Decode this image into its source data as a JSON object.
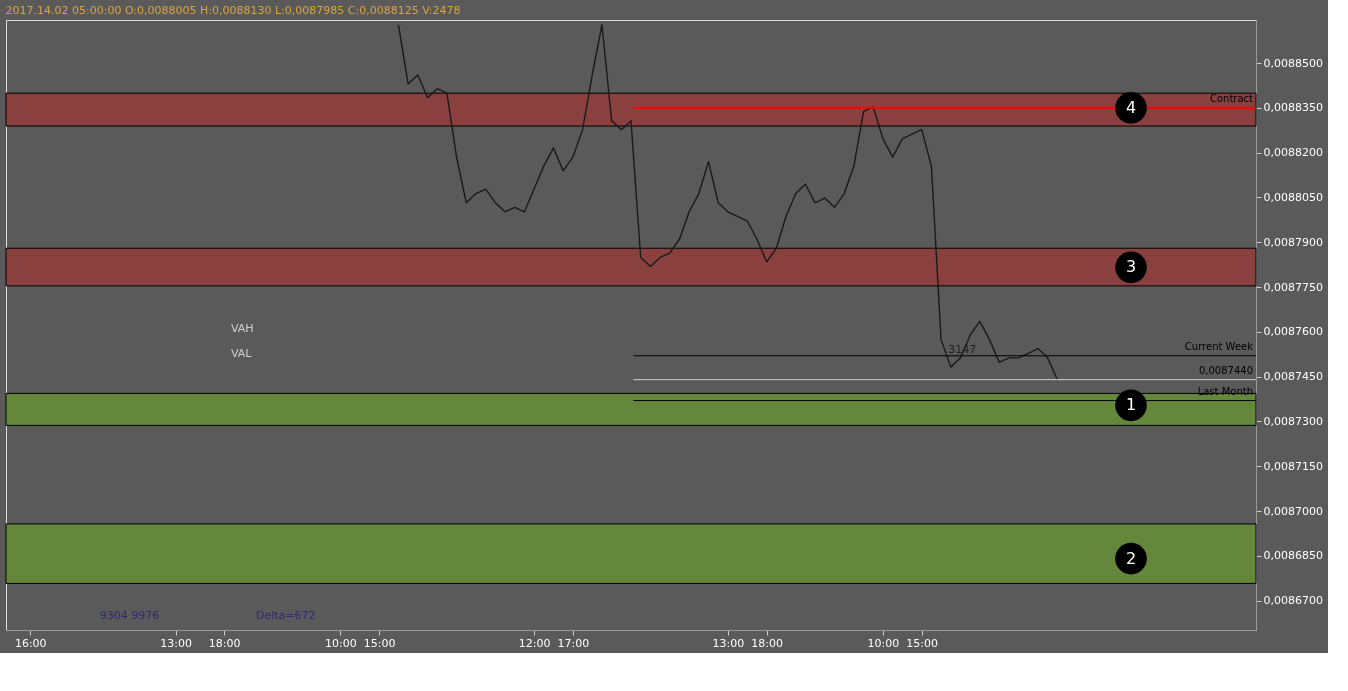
{
  "chart_data": {
    "type": "line",
    "title": "2017.14.02 05:00:00   O:0,0088005   H:0,0088130   L:0,0087985   C:0,0088125   V:2478",
    "categories": [
      null,
      null,
      "16:00",
      null,
      null,
      null,
      null,
      null,
      null,
      null,
      null,
      null,
      null,
      null,
      null,
      null,
      null,
      "13:00",
      null,
      null,
      null,
      null,
      "18:00",
      null,
      null,
      null,
      null,
      null,
      null,
      null,
      null,
      null,
      null,
      null,
      "10:00",
      null,
      null,
      null,
      "15:00",
      null,
      null,
      null,
      null,
      null,
      null,
      null,
      null,
      null,
      null,
      null,
      null,
      null,
      null,
      null,
      "12:00",
      null,
      null,
      null,
      "17:00",
      null,
      null,
      null,
      null,
      null,
      null,
      null,
      null,
      null,
      null,
      null,
      null,
      null,
      null,
      null,
      "13:00",
      null,
      null,
      null,
      "18:00",
      null,
      null,
      null,
      null,
      null,
      null,
      null,
      null,
      null,
      null,
      null,
      "10:00",
      null,
      null,
      null,
      "15:00",
      null,
      null,
      null,
      null,
      null,
      null,
      null,
      null,
      null,
      null,
      null,
      null,
      null,
      null,
      null,
      null,
      null,
      null,
      null,
      null,
      null,
      null,
      null,
      null,
      null,
      null,
      null,
      null,
      null,
      null,
      null,
      null,
      null,
      null
    ],
    "series": [
      {
        "color": "#1a1a1a",
        "values": [
          null,
          null,
          null,
          null,
          null,
          null,
          null,
          null,
          null,
          null,
          null,
          null,
          null,
          null,
          null,
          null,
          null,
          null,
          null,
          null,
          null,
          null,
          null,
          null,
          null,
          null,
          null,
          null,
          null,
          null,
          null,
          null,
          null,
          null,
          null,
          null,
          null,
          null,
          null,
          null,
          0.0088628,
          0.008843,
          0.008846,
          0.0088384,
          0.0088414,
          0.0088399,
          0.0088185,
          0.0088032,
          0.0088063,
          0.0088078,
          0.0088032,
          0.0088002,
          0.0088017,
          0.0088002,
          0.0088078,
          0.0088155,
          0.0088216,
          0.0088139,
          0.0088185,
          0.0088277,
          0.008846,
          0.0088628,
          0.0088307,
          0.0088277,
          0.0088307,
          0.0087849,
          0.0087819,
          0.0087849,
          0.0087864,
          0.008791,
          0.0088002,
          0.0088063,
          0.008817,
          0.0088032,
          0.0088002,
          0.0087987,
          0.0087971,
          0.008791,
          0.0087834,
          0.008788,
          0.0087987,
          0.0088063,
          0.0088094,
          0.0088032,
          0.0088048,
          0.0088017,
          0.0088063,
          0.0088155,
          0.0088338,
          0.0088353,
          0.0088246,
          0.0088185,
          0.0088246,
          0.0088262,
          0.0088277,
          0.0088155,
          0.0087574,
          0.0087482,
          0.0087513,
          0.0087589,
          0.0087635,
          0.0087574,
          0.0087498,
          0.0087513,
          0.0087513,
          0.0087528,
          0.0087544,
          0.0087513,
          0.008744,
          null,
          null,
          null,
          null,
          null,
          null,
          null,
          null,
          null,
          null,
          null,
          null,
          null,
          null,
          null,
          null,
          null,
          null,
          null,
          null
        ]
      }
    ],
    "ylim": [
      0.0086602,
      0.0088644
    ],
    "yticks": [
      {
        "value": 0.00867,
        "label": "0,0086700"
      },
      {
        "value": 0.008685,
        "label": "0,0086850"
      },
      {
        "value": 0.0087,
        "label": "0,0087000"
      },
      {
        "value": 0.008715,
        "label": "0,0087150"
      },
      {
        "value": 0.00873,
        "label": "0,0087300"
      },
      {
        "value": 0.008745,
        "label": "0,0087450"
      },
      {
        "value": 0.00876,
        "label": "0,0087600"
      },
      {
        "value": 0.008775,
        "label": "0,0087750"
      },
      {
        "value": 0.00879,
        "label": "0,0087900"
      },
      {
        "value": 0.008805,
        "label": "0,0088050"
      },
      {
        "value": 0.00882,
        "label": "0,0088200"
      },
      {
        "value": 0.008835,
        "label": "0,0088350"
      },
      {
        "value": 0.00885,
        "label": "0,0088500"
      }
    ],
    "bands": [
      {
        "axis": "y",
        "from": 0.0088289,
        "to": 0.0088399,
        "color": "#8b4040"
      },
      {
        "axis": "y",
        "from": 0.0087754,
        "to": 0.008788,
        "color": "#8b4040"
      },
      {
        "axis": "y",
        "from": 0.0087287,
        "to": 0.0087394,
        "color": "#64873c"
      },
      {
        "axis": "y",
        "from": 0.0086758,
        "to": 0.0086957,
        "color": "#64873c"
      }
    ],
    "ref_lines": [
      {
        "axis": "y",
        "value": 0.008835,
        "label": "Contract",
        "color": "#ff0000"
      },
      {
        "axis": "y",
        "value": 0.008752,
        "label": "Current Week",
        "color": "#000000"
      },
      {
        "axis": "y",
        "value": 0.008744,
        "label": "0,0087440",
        "color": "#d0d0d0"
      },
      {
        "axis": "y",
        "value": 0.008737,
        "label": "Last Month",
        "color": "#000000"
      }
    ],
    "annotations": [
      {
        "text": "4",
        "y": 0.008835
      },
      {
        "text": "3",
        "y": 0.0087816
      },
      {
        "text": "1",
        "y": 0.0087354
      },
      {
        "text": "2",
        "y": 0.0086841
      },
      {
        "text": "3147",
        "y": 0.0087538
      },
      "VAH",
      "VAL",
      "9304 9976",
      "Delta=672"
    ],
    "grid": false
  }
}
